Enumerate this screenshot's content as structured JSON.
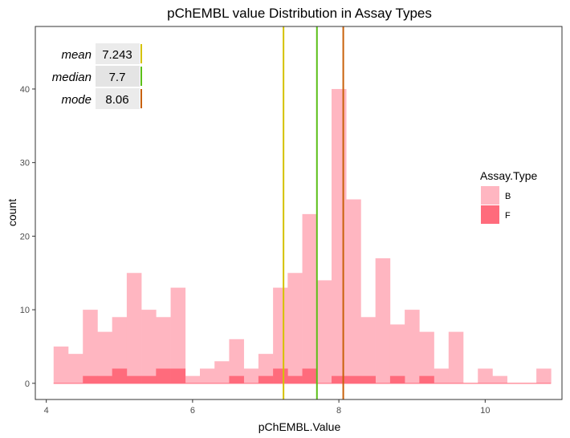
{
  "chart_data": {
    "type": "bar",
    "title": "pChEMBL value Distribution in Assay Types",
    "xlabel": "pChEMBL.Value",
    "ylabel": "count",
    "xlim": [
      3.85,
      11.05
    ],
    "ylim": [
      -2.2,
      48.5
    ],
    "x_ticks": [
      4,
      6,
      8,
      10
    ],
    "y_ticks": [
      0,
      10,
      20,
      30,
      40
    ],
    "grid": false,
    "bin_start": 4.1,
    "bin_width": 0.2,
    "legend": {
      "title": "Assay.Type",
      "position": "right",
      "entries": [
        {
          "label": "B",
          "color": "#ffb6c1"
        },
        {
          "label": "F",
          "color": "#ff6b7c"
        }
      ]
    },
    "series": [
      {
        "name": "B",
        "color": "#ffb6c1",
        "values": [
          5,
          4,
          10,
          7,
          9,
          15,
          10,
          9,
          13,
          1,
          2,
          3,
          6,
          2,
          4,
          13,
          15,
          23,
          14,
          40,
          25,
          9,
          17,
          8,
          10,
          7,
          2,
          7,
          0,
          2,
          1,
          0,
          0,
          2
        ]
      },
      {
        "name": "F",
        "color": "#ff6b7c",
        "values": [
          0,
          0,
          1,
          1,
          2,
          1,
          1,
          2,
          2,
          0,
          0,
          0,
          1,
          0,
          1,
          2,
          1,
          2,
          0,
          1,
          1,
          1,
          0,
          1,
          0,
          1,
          0,
          0,
          0,
          0,
          0,
          0,
          0,
          0
        ]
      }
    ],
    "reference_lines": [
      {
        "name": "mean",
        "value": 7.243,
        "label": "7.243",
        "color": "#d4c200"
      },
      {
        "name": "median",
        "value": 7.7,
        "label": "7.7",
        "color": "#5bbf18"
      },
      {
        "name": "mode",
        "value": 8.06,
        "label": "8.06",
        "color": "#c8610a"
      }
    ]
  }
}
